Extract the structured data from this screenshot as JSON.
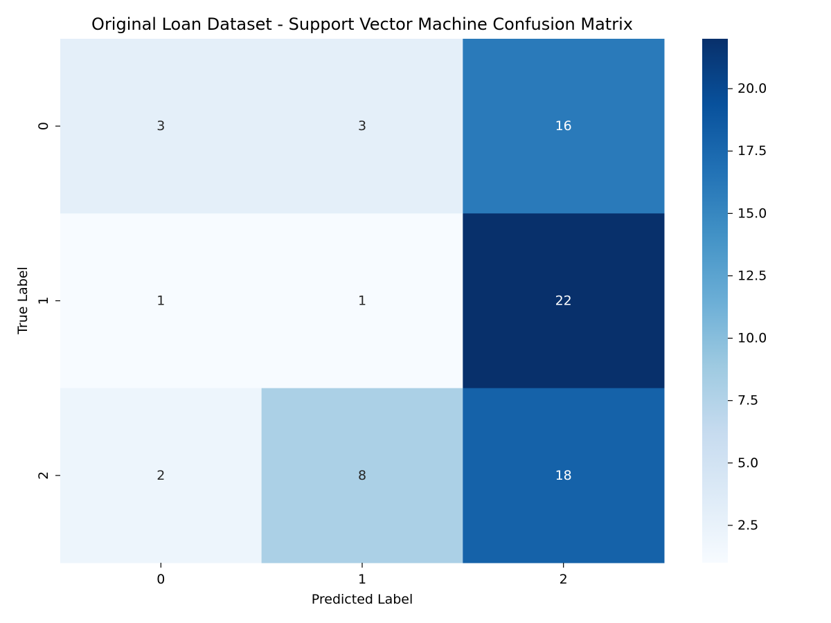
{
  "chart_data": {
    "type": "heatmap",
    "title": "Original Loan Dataset - Support Vector Machine Confusion Matrix",
    "xlabel": "Predicted Label",
    "ylabel": "True Label",
    "x_categories": [
      "0",
      "1",
      "2"
    ],
    "y_categories": [
      "0",
      "1",
      "2"
    ],
    "values": [
      [
        3,
        3,
        16
      ],
      [
        1,
        1,
        22
      ],
      [
        2,
        8,
        18
      ]
    ],
    "colormap": "Blues",
    "colorbar": {
      "min": 1,
      "max": 22,
      "ticks": [
        2.5,
        5.0,
        7.5,
        10.0,
        12.5,
        15.0,
        17.5,
        20.0
      ],
      "tick_labels": [
        "2.5",
        "5.0",
        "7.5",
        "10.0",
        "12.5",
        "15.0",
        "17.5",
        "20.0"
      ]
    },
    "annotated": true,
    "grid": false
  }
}
